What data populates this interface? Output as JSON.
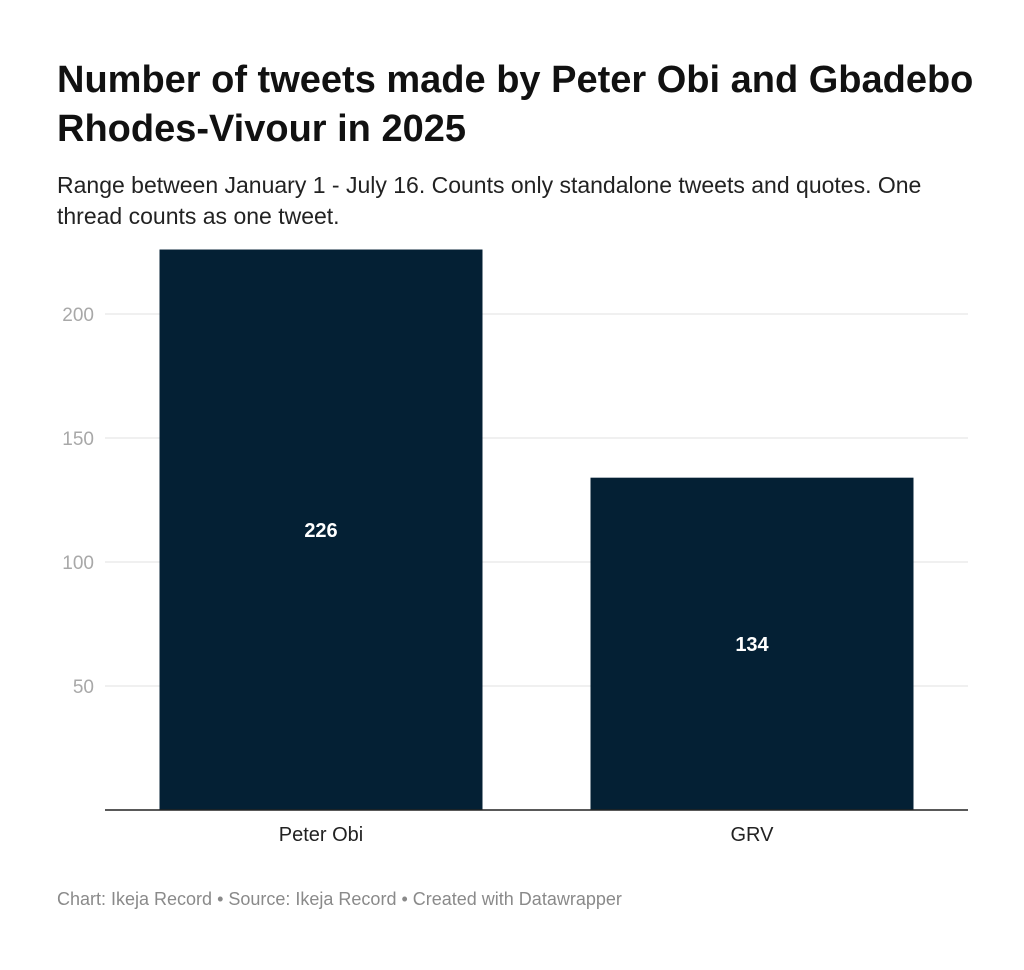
{
  "header": {
    "title": "Number of tweets made by Peter Obi and Gbadebo Rhodes-Vivour in 2025",
    "subtitle": "Range between January 1 - July 16. Counts only standalone tweets and quotes. One thread counts as one tweet."
  },
  "footer": {
    "text": "Chart: Ikeja Record • Source: Ikeja Record • Created with Datawrapper"
  },
  "colors": {
    "bar": "#042034",
    "grid": "#e2e2e2",
    "tick_label": "#a8a8a8",
    "axis": "#222222"
  },
  "chart_data": {
    "type": "bar",
    "categories": [
      "Peter Obi",
      "GRV"
    ],
    "values": [
      226,
      134
    ],
    "value_labels": [
      "226",
      "134"
    ],
    "title": "Number of tweets made by Peter Obi and Gbadebo Rhodes-Vivour in 2025",
    "subtitle": "Range between January 1 - July 16. Counts only standalone tweets and quotes. One thread counts as one tweet.",
    "xlabel": "",
    "ylabel": "",
    "ylim": [
      0,
      226
    ],
    "yticks": [
      50,
      100,
      150,
      200
    ],
    "ytick_labels": [
      "50",
      "100",
      "150",
      "200"
    ],
    "grid": true,
    "legend": "none"
  }
}
